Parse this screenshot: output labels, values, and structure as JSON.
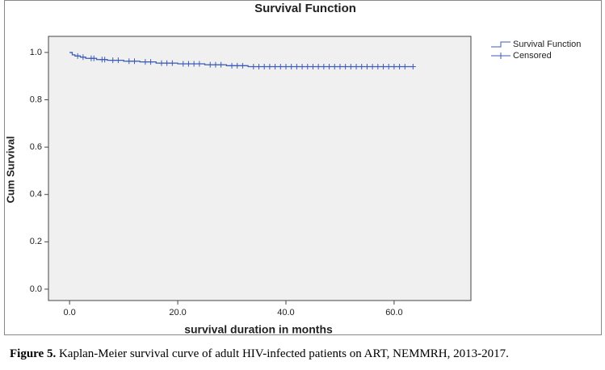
{
  "chart_data": {
    "type": "step",
    "title": "Survival Function",
    "x_label": "survival duration in months",
    "y_label": "Cum Survival",
    "xlim": [
      -3.9,
      74.2
    ],
    "ylim": [
      -0.048,
      1.068
    ],
    "xticks": [
      {
        "value": 0,
        "label": "0.0"
      },
      {
        "value": 20,
        "label": "20.0"
      },
      {
        "value": 40,
        "label": "40.0"
      },
      {
        "value": 60,
        "label": "60.0"
      }
    ],
    "yticks": [
      {
        "value": 0,
        "label": "0.0"
      },
      {
        "value": 0.2,
        "label": "0.2"
      },
      {
        "value": 0.4,
        "label": "0.4"
      },
      {
        "value": 0.6,
        "label": "0.6"
      },
      {
        "value": 0.8,
        "label": "0.8"
      },
      {
        "value": 1,
        "label": "1.0"
      }
    ],
    "legend": "right",
    "series": [
      {
        "name": "Survival Function",
        "color": "#3d5bb8",
        "x": [
          0,
          0.5,
          1,
          2,
          3,
          5,
          7,
          10,
          13,
          16,
          20,
          25,
          29,
          33,
          63.5
        ],
        "values": [
          1.0,
          0.99,
          0.985,
          0.98,
          0.975,
          0.97,
          0.967,
          0.963,
          0.96,
          0.955,
          0.952,
          0.948,
          0.944,
          0.94,
          0.94
        ]
      },
      {
        "name": "Censored",
        "color": "#3d5bb8",
        "marker": "+",
        "x": [
          1.5,
          2.5,
          4,
          4.5,
          6,
          6.5,
          8,
          9,
          11,
          12,
          14,
          15,
          17,
          18,
          19,
          21,
          22,
          23,
          24,
          26,
          27,
          28,
          30,
          31,
          32,
          34,
          35,
          36,
          37,
          38,
          39,
          40,
          41,
          42,
          43,
          44,
          45,
          46,
          47,
          48,
          49,
          50,
          51,
          52,
          53,
          54,
          55,
          56,
          57,
          58,
          59,
          60,
          61,
          62,
          63.5
        ],
        "values": [
          0.985,
          0.98,
          0.975,
          0.975,
          0.97,
          0.97,
          0.967,
          0.967,
          0.963,
          0.963,
          0.96,
          0.96,
          0.955,
          0.955,
          0.955,
          0.952,
          0.952,
          0.952,
          0.952,
          0.948,
          0.948,
          0.948,
          0.944,
          0.944,
          0.944,
          0.94,
          0.94,
          0.94,
          0.94,
          0.94,
          0.94,
          0.94,
          0.94,
          0.94,
          0.94,
          0.94,
          0.94,
          0.94,
          0.94,
          0.94,
          0.94,
          0.94,
          0.94,
          0.94,
          0.94,
          0.94,
          0.94,
          0.94,
          0.94,
          0.94,
          0.94,
          0.94,
          0.94,
          0.94,
          0.94
        ]
      }
    ]
  },
  "caption": {
    "label": "Figure 5.",
    "text": "Kaplan-Meier survival curve of adult HIV-infected patients on ART, NEMMRH, 2013-2017."
  }
}
